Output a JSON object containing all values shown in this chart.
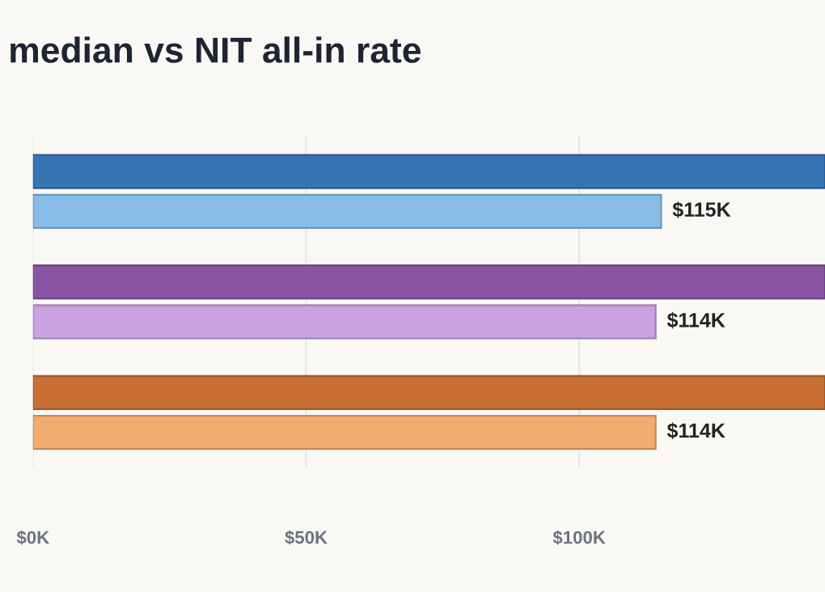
{
  "chart_data": {
    "type": "bar",
    "orientation": "horizontal",
    "title": "median vs NIT all-in rate",
    "categories": [
      null,
      null,
      null
    ],
    "series": [
      {
        "colors": [
          "#3674b4",
          "#8a55a2",
          "#c86f33"
        ],
        "values": [
          145,
          145,
          145
        ]
      },
      {
        "colors": [
          "#88bce8",
          "#c9a2df",
          "#f3ac70"
        ],
        "values": [
          115,
          114,
          114
        ],
        "value_labels": [
          "$115K",
          "$114K",
          "$114K"
        ]
      }
    ],
    "xlim": [
      0,
      145
    ],
    "xticks": [
      {
        "value": 0,
        "label": "$0K"
      },
      {
        "value": 50,
        "label": "$50K"
      },
      {
        "value": 100,
        "label": "$100K"
      }
    ],
    "grid": "x",
    "legend": false
  }
}
